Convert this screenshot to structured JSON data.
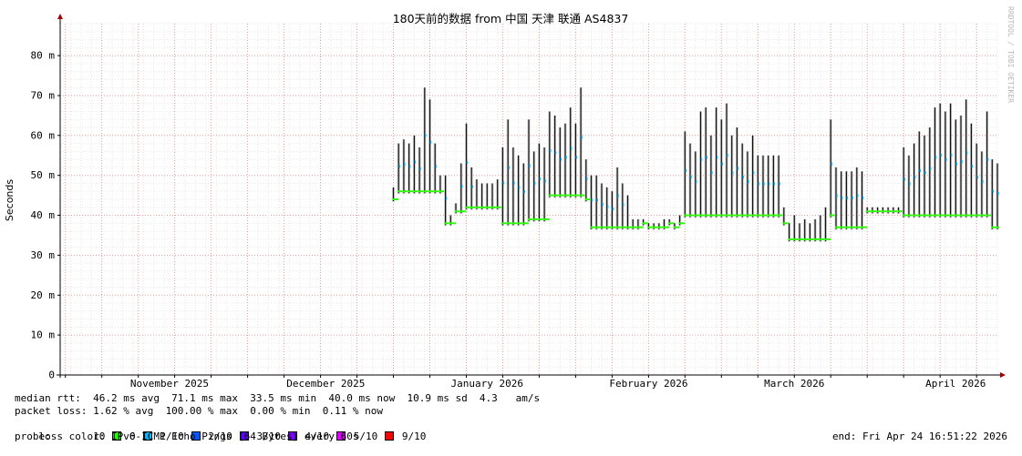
{
  "chart_data": {
    "type": "line",
    "title": "180天前的数据 from 中国 天津 联通 AS4837",
    "ylabel": "Seconds",
    "ylim": [
      0,
      88
    ],
    "y_ticks": [
      "0",
      "10 m",
      "20 m",
      "30 m",
      "40 m",
      "50 m",
      "60 m",
      "70 m",
      "80 m"
    ],
    "x_labels": [
      "November 2025",
      "December 2025",
      "January 2026",
      "February 2026",
      "March 2026",
      "April 2026"
    ],
    "x_label_dates": [
      "2025-11-01",
      "2025-12-01",
      "2026-01-01",
      "2026-02-01",
      "2026-03-01",
      "2026-04-01"
    ],
    "x_range": [
      "2025-10-26",
      "2026-04-24"
    ],
    "grid": true,
    "series": [
      {
        "unit": "ms",
        "points": [
          [
            "2025-12-29",
            44,
            47
          ],
          [
            "2025-12-30",
            46,
            58
          ],
          [
            "2025-12-31",
            46,
            59
          ],
          [
            "2026-01-01",
            46,
            58
          ],
          [
            "2026-01-02",
            46,
            60
          ],
          [
            "2026-01-03",
            46,
            57
          ],
          [
            "2026-01-04",
            46,
            72
          ],
          [
            "2026-01-05",
            46,
            69
          ],
          [
            "2026-01-06",
            46,
            58
          ],
          [
            "2026-01-07",
            46,
            50
          ],
          [
            "2026-01-08",
            38,
            50
          ],
          [
            "2026-01-09",
            38,
            40
          ],
          [
            "2026-01-10",
            41,
            43
          ],
          [
            "2026-01-11",
            41,
            53
          ],
          [
            "2026-01-12",
            42,
            63
          ],
          [
            "2026-01-13",
            42,
            52
          ],
          [
            "2026-01-14",
            42,
            49
          ],
          [
            "2026-01-15",
            42,
            48
          ],
          [
            "2026-01-16",
            42,
            48
          ],
          [
            "2026-01-17",
            42,
            48
          ],
          [
            "2026-01-18",
            42,
            49
          ],
          [
            "2026-01-19",
            38,
            57
          ],
          [
            "2026-01-20",
            38,
            64
          ],
          [
            "2026-01-21",
            38,
            57
          ],
          [
            "2026-01-22",
            38,
            55
          ],
          [
            "2026-01-23",
            38,
            53
          ],
          [
            "2026-01-24",
            39,
            64
          ],
          [
            "2026-01-25",
            39,
            56
          ],
          [
            "2026-01-26",
            39,
            58
          ],
          [
            "2026-01-27",
            39,
            57
          ],
          [
            "2026-01-28",
            45,
            66
          ],
          [
            "2026-01-29",
            45,
            65
          ],
          [
            "2026-01-30",
            45,
            62
          ],
          [
            "2026-01-31",
            45,
            63
          ],
          [
            "2026-02-01",
            45,
            67
          ],
          [
            "2026-02-02",
            45,
            63
          ],
          [
            "2026-02-03",
            45,
            72
          ],
          [
            "2026-02-04",
            44,
            54
          ],
          [
            "2026-02-05",
            37,
            50
          ],
          [
            "2026-02-06",
            37,
            50
          ],
          [
            "2026-02-07",
            37,
            48
          ],
          [
            "2026-02-08",
            37,
            47
          ],
          [
            "2026-02-09",
            37,
            46
          ],
          [
            "2026-02-10",
            37,
            52
          ],
          [
            "2026-02-11",
            37,
            48
          ],
          [
            "2026-02-12",
            37,
            45
          ],
          [
            "2026-02-13",
            37,
            39
          ],
          [
            "2026-02-14",
            37,
            39
          ],
          [
            "2026-02-15",
            38,
            39
          ],
          [
            "2026-02-16",
            37,
            38
          ],
          [
            "2026-02-17",
            37,
            38
          ],
          [
            "2026-02-18",
            37,
            38
          ],
          [
            "2026-02-19",
            37,
            39
          ],
          [
            "2026-02-20",
            38,
            39
          ],
          [
            "2026-02-21",
            37,
            38
          ],
          [
            "2026-02-22",
            38,
            40
          ],
          [
            "2026-02-23",
            40,
            61
          ],
          [
            "2026-02-24",
            40,
            58
          ],
          [
            "2026-02-25",
            40,
            56
          ],
          [
            "2026-02-26",
            40,
            66
          ],
          [
            "2026-02-27",
            40,
            67
          ],
          [
            "2026-02-28",
            40,
            60
          ],
          [
            "2026-03-01",
            40,
            67
          ],
          [
            "2026-03-02",
            40,
            64
          ],
          [
            "2026-03-03",
            40,
            68
          ],
          [
            "2026-03-04",
            40,
            60
          ],
          [
            "2026-03-05",
            40,
            62
          ],
          [
            "2026-03-06",
            40,
            58
          ],
          [
            "2026-03-07",
            40,
            56
          ],
          [
            "2026-03-08",
            40,
            60
          ],
          [
            "2026-03-09",
            40,
            55
          ],
          [
            "2026-03-10",
            40,
            55
          ],
          [
            "2026-03-11",
            40,
            55
          ],
          [
            "2026-03-12",
            40,
            55
          ],
          [
            "2026-03-13",
            40,
            55
          ],
          [
            "2026-03-14",
            38,
            42
          ],
          [
            "2026-03-15",
            34,
            38
          ],
          [
            "2026-03-16",
            34,
            40
          ],
          [
            "2026-03-17",
            34,
            38
          ],
          [
            "2026-03-18",
            34,
            39
          ],
          [
            "2026-03-19",
            34,
            38
          ],
          [
            "2026-03-20",
            34,
            39
          ],
          [
            "2026-03-21",
            34,
            40
          ],
          [
            "2026-03-22",
            34,
            42
          ],
          [
            "2026-03-23",
            40,
            64
          ],
          [
            "2026-03-24",
            37,
            52
          ],
          [
            "2026-03-25",
            37,
            51
          ],
          [
            "2026-03-26",
            37,
            51
          ],
          [
            "2026-03-27",
            37,
            51
          ],
          [
            "2026-03-28",
            37,
            52
          ],
          [
            "2026-03-29",
            37,
            51
          ],
          [
            "2026-03-30",
            41,
            42
          ],
          [
            "2026-03-31",
            41,
            42
          ],
          [
            "2026-04-01",
            41,
            42
          ],
          [
            "2026-04-02",
            41,
            42
          ],
          [
            "2026-04-03",
            41,
            42
          ],
          [
            "2026-04-04",
            41,
            42
          ],
          [
            "2026-04-05",
            41,
            42
          ],
          [
            "2026-04-06",
            40,
            57
          ],
          [
            "2026-04-07",
            40,
            55
          ],
          [
            "2026-04-08",
            40,
            58
          ],
          [
            "2026-04-09",
            40,
            61
          ],
          [
            "2026-04-10",
            40,
            60
          ],
          [
            "2026-04-11",
            40,
            62
          ],
          [
            "2026-04-12",
            40,
            67
          ],
          [
            "2026-04-13",
            40,
            68
          ],
          [
            "2026-04-14",
            40,
            66
          ],
          [
            "2026-04-15",
            40,
            68
          ],
          [
            "2026-04-16",
            40,
            64
          ],
          [
            "2026-04-17",
            40,
            65
          ],
          [
            "2026-04-18",
            40,
            69
          ],
          [
            "2026-04-19",
            40,
            63
          ],
          [
            "2026-04-20",
            40,
            58
          ],
          [
            "2026-04-21",
            40,
            56
          ],
          [
            "2026-04-22",
            40,
            66
          ],
          [
            "2026-04-23",
            37,
            54
          ],
          [
            "2026-04-24",
            37,
            53
          ]
        ]
      }
    ]
  },
  "watermark": "RRDTOOL / TOBI OETIKER",
  "stats": {
    "median_rtt": "median rtt:  46.2 ms avg  71.1 ms max  33.5 ms min  40.0 ms now  10.9 ms sd  4.3   am/s",
    "packet_loss": "packet loss: 1.62 % avg  100.00 % max  0.00 % min  0.11 % now",
    "loss_color_label": "loss color:",
    "probe": "probe:       10 IPv6-ICMP Echo Pings (64 Bytes) every 60s",
    "end": "end: Fri Apr 24 16:51:22 2026"
  },
  "loss_colors": [
    {
      "label": "0",
      "color": "#26ff00"
    },
    {
      "label": "1/10",
      "color": "#00b8ff"
    },
    {
      "label": "2/10",
      "color": "#0059ff"
    },
    {
      "label": "3/10",
      "color": "#5e00ff"
    },
    {
      "label": "4/10",
      "color": "#7e00ff"
    },
    {
      "label": "5/10",
      "color": "#dd00ff"
    },
    {
      "label": "9/10",
      "color": "#ff0000"
    }
  ]
}
